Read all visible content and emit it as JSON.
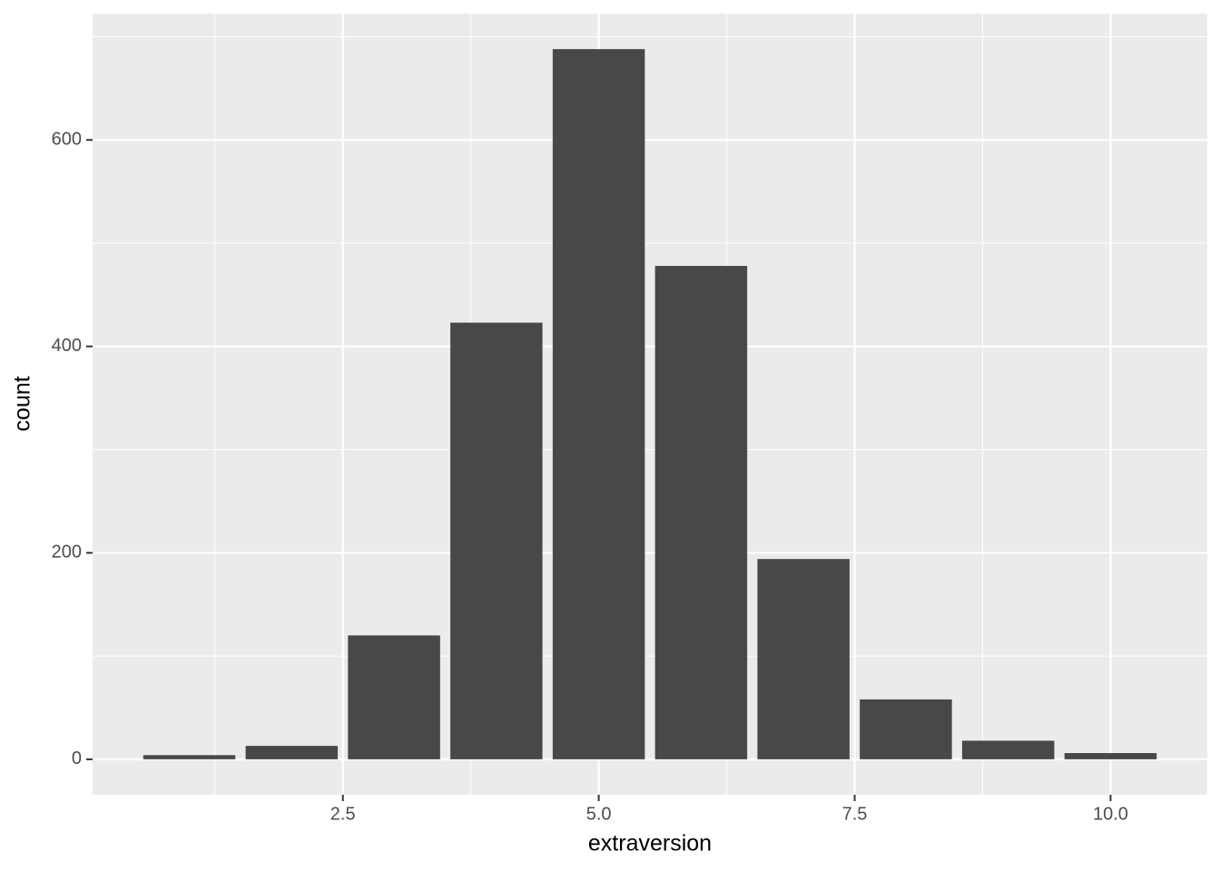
{
  "chart_data": {
    "type": "bar",
    "x": [
      1,
      2,
      3,
      4,
      5,
      6,
      7,
      8,
      9,
      10
    ],
    "values": [
      4,
      13,
      120,
      423,
      688,
      478,
      194,
      58,
      18,
      6
    ],
    "color": "#484848",
    "x_label": "extraversion",
    "y_label": "count",
    "xlim": [
      0.055,
      10.945
    ],
    "ylim": [
      -34.4,
      722.4
    ],
    "xticks": [
      {
        "value": 2.5,
        "label": "2.5"
      },
      {
        "value": 5,
        "label": "5.0"
      },
      {
        "value": 7.5,
        "label": "7.5"
      },
      {
        "value": 10,
        "label": "10.0"
      }
    ],
    "yticks": [
      0,
      200,
      400,
      600
    ],
    "grid": true
  }
}
